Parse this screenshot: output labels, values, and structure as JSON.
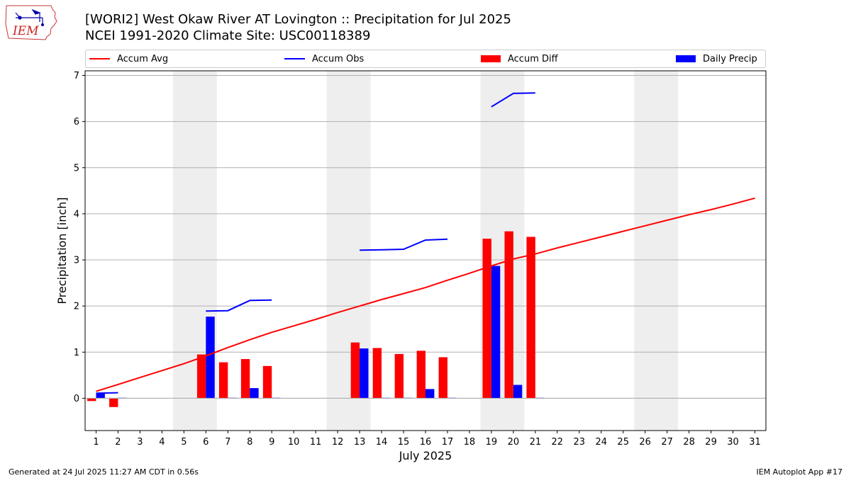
{
  "header": {
    "title_line1": "[WORI2] West Okaw River  AT Lovington :: Precipitation for Jul 2025",
    "title_line2": "NCEI 1991-2020 Climate Site: USC00118389",
    "logo_text": "IEM"
  },
  "legend": {
    "items": [
      {
        "label": "Accum Avg",
        "kind": "line",
        "color": "#ff0000"
      },
      {
        "label": "Accum Obs",
        "kind": "line",
        "color": "#0000ff"
      },
      {
        "label": "Accum Diff",
        "kind": "bar",
        "color": "#ff0000"
      },
      {
        "label": "Daily Precip",
        "kind": "bar",
        "color": "#0000ff"
      }
    ]
  },
  "chart_data": {
    "type": "bar",
    "title": "[WORI2] West Okaw River  AT Lovington :: Precipitation for Jul 2025",
    "subtitle": "NCEI 1991-2020 Climate Site: USC00118389",
    "xlabel": "July 2025",
    "ylabel": "Precipitation [inch]",
    "xlim": [
      0.5,
      31.5
    ],
    "ylim": [
      -0.7,
      7.1
    ],
    "yticks": [
      0,
      1,
      2,
      3,
      4,
      5,
      6,
      7
    ],
    "x": [
      1,
      2,
      3,
      4,
      5,
      6,
      7,
      8,
      9,
      10,
      11,
      12,
      13,
      14,
      15,
      16,
      17,
      18,
      19,
      20,
      21,
      22,
      23,
      24,
      25,
      26,
      27,
      28,
      29,
      30,
      31
    ],
    "grid": "horizontal",
    "weekend_shading": [
      [
        4.5,
        6.5
      ],
      [
        11.5,
        13.5
      ],
      [
        18.5,
        20.5
      ],
      [
        25.5,
        27.5
      ]
    ],
    "series": [
      {
        "name": "Accum Avg",
        "kind": "line",
        "color": "#ff0000",
        "values": [
          0.15,
          0.3,
          0.45,
          0.6,
          0.75,
          0.92,
          1.1,
          1.27,
          1.43,
          1.57,
          1.71,
          1.86,
          2.0,
          2.14,
          2.27,
          2.4,
          2.56,
          2.71,
          2.87,
          3.02,
          3.13,
          3.26,
          3.38,
          3.5,
          3.62,
          3.74,
          3.86,
          3.98,
          4.09,
          4.21,
          4.34
        ]
      },
      {
        "name": "Accum Obs",
        "kind": "line",
        "color": "#0000ff",
        "values": [
          0.11,
          0.12,
          null,
          null,
          null,
          1.89,
          1.9,
          2.12,
          2.13,
          null,
          null,
          null,
          3.21,
          3.22,
          3.23,
          3.43,
          3.45,
          null,
          6.32,
          6.61,
          6.62,
          null,
          null,
          null,
          null,
          null,
          null,
          null,
          null,
          null,
          null
        ]
      },
      {
        "name": "Accum Diff",
        "kind": "bar",
        "color": "#ff0000",
        "values": [
          -0.06,
          -0.19,
          null,
          null,
          null,
          0.95,
          0.78,
          0.85,
          0.7,
          null,
          null,
          null,
          1.21,
          1.09,
          0.96,
          1.03,
          0.89,
          null,
          3.46,
          3.62,
          3.5,
          null,
          null,
          null,
          null,
          null,
          null,
          null,
          null,
          null,
          null
        ]
      },
      {
        "name": "Daily Precip",
        "kind": "bar",
        "color": "#0000ff",
        "values": [
          0.11,
          0.01,
          null,
          null,
          null,
          1.77,
          0.01,
          0.22,
          0.01,
          null,
          null,
          null,
          1.08,
          0.01,
          0.01,
          0.2,
          0.01,
          null,
          2.87,
          0.29,
          0.01,
          null,
          null,
          null,
          null,
          null,
          null,
          null,
          null,
          null,
          null
        ]
      }
    ]
  },
  "footer": {
    "left": "Generated at 24 Jul 2025 11:27 AM CDT in 0.56s",
    "right": "IEM Autoplot App #17"
  }
}
